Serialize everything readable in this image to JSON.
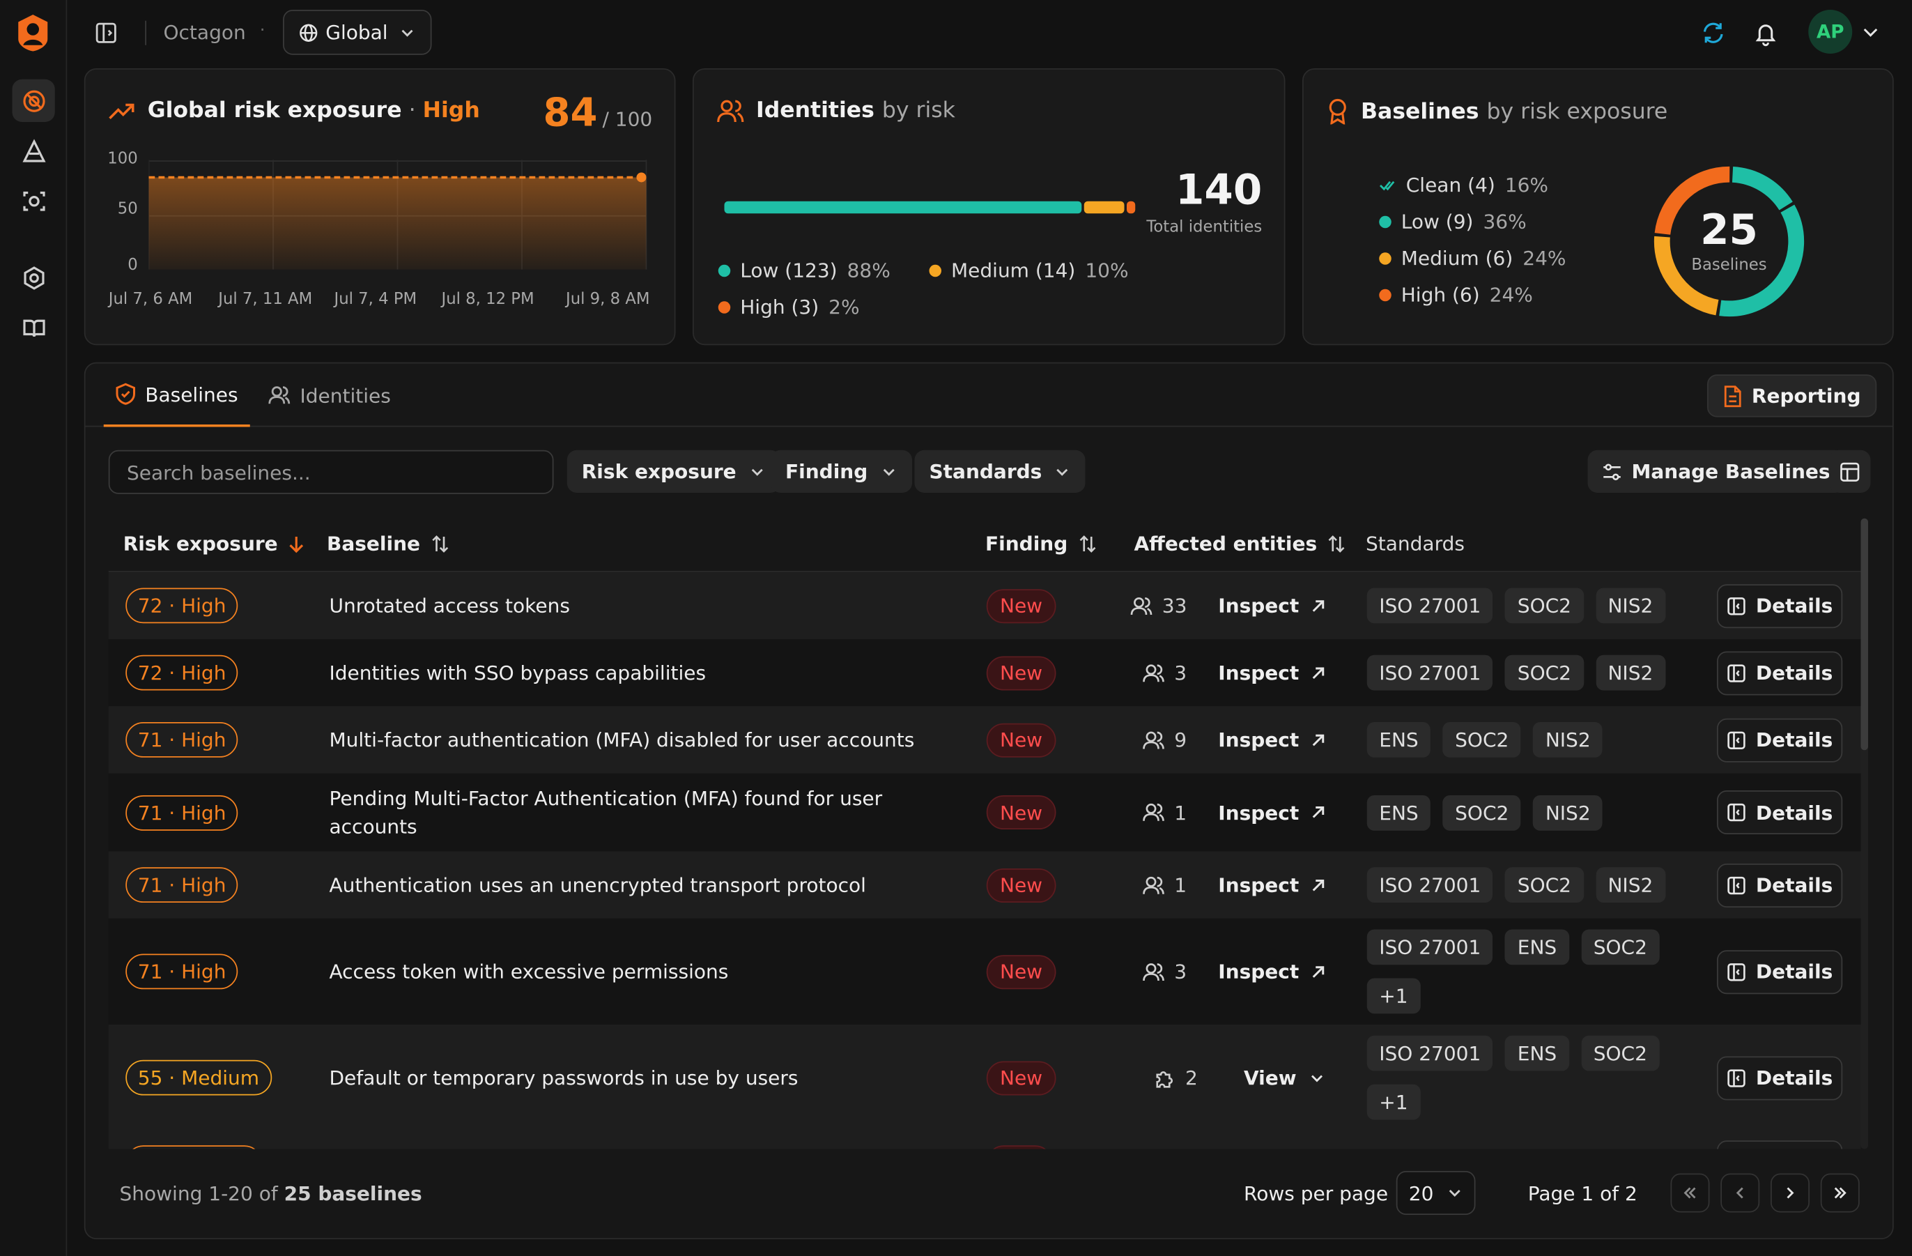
{
  "topbar": {
    "org_name": "Octagon",
    "separator": "·",
    "scope_label": "Global",
    "avatar_initials": "AP"
  },
  "sidebar": {
    "items": [
      {
        "icon": "target-off-icon",
        "active": true
      },
      {
        "icon": "triangle-icon",
        "active": false
      },
      {
        "icon": "scan-face-icon",
        "active": false
      },
      {
        "icon": "settings-gear-icon",
        "active": false
      },
      {
        "icon": "book-open-icon",
        "active": false
      }
    ]
  },
  "risk_card": {
    "title": "Global risk exposure",
    "dot": " · ",
    "level": "High",
    "score": "84",
    "score_max": "/ 100",
    "chart_data": {
      "type": "area",
      "x": [
        "Jul 7, 6 AM",
        "Jul 7, 11 AM",
        "Jul 7, 4 PM",
        "Jul 8, 12 PM",
        "Jul 9, 8 AM"
      ],
      "values": [
        84,
        84,
        84,
        84,
        84
      ],
      "yticks": [
        "100",
        "50",
        "0"
      ],
      "ylim": [
        0,
        100
      ],
      "color": "#f58220"
    }
  },
  "identities_card": {
    "title": "Identities",
    "subtitle": "by risk",
    "total": "140",
    "total_label": "Total identities",
    "segments": [
      {
        "label": "Low (123)",
        "pct": "88%",
        "fraction": 0.88,
        "color": "#1fbfa6"
      },
      {
        "label": "Medium (14)",
        "pct": "10%",
        "fraction": 0.1,
        "color": "#f5a623"
      },
      {
        "label": "High (3)",
        "pct": "2%",
        "fraction": 0.02,
        "color": "#f26b1d"
      }
    ]
  },
  "baselines_card": {
    "title": "Baselines",
    "subtitle": "by risk exposure",
    "total": "25",
    "total_label": "Baselines",
    "segments": [
      {
        "label": "Clean (4)",
        "pct": "16%",
        "fraction": 0.16,
        "color": "#1fbfa6"
      },
      {
        "label": "Low (9)",
        "pct": "36%",
        "fraction": 0.36,
        "color": "#1fbfa6"
      },
      {
        "label": "Medium (6)",
        "pct": "24%",
        "fraction": 0.24,
        "color": "#f5a623"
      },
      {
        "label": "High (6)",
        "pct": "24%",
        "fraction": 0.24,
        "color": "#f26b1d"
      }
    ]
  },
  "tabs": [
    {
      "label": "Baselines",
      "active": true
    },
    {
      "label": "Identities",
      "active": false
    }
  ],
  "reporting_label": "Reporting",
  "toolbar": {
    "search_placeholder": "Search baselines...",
    "filters": [
      "Risk exposure",
      "Finding",
      "Standards"
    ],
    "manage_label": "Manage Baselines"
  },
  "table": {
    "headers": {
      "risk": "Risk exposure",
      "baseline": "Baseline",
      "finding": "Finding",
      "entities": "Affected entities",
      "standards": "Standards"
    },
    "rows": [
      {
        "risk": "72 · High",
        "level": "high",
        "baseline": "Unrotated access tokens",
        "finding": "New",
        "entity_icon": "users-icon",
        "entities": "33",
        "action": "Inspect",
        "standards": [
          "ISO 27001",
          "SOC2",
          "NIS2"
        ],
        "details": "Details"
      },
      {
        "risk": "72 · High",
        "level": "high",
        "baseline": "Identities with SSO bypass capabilities",
        "finding": "New",
        "entity_icon": "users-icon",
        "entities": "3",
        "action": "Inspect",
        "standards": [
          "ISO 27001",
          "SOC2",
          "NIS2"
        ],
        "details": "Details"
      },
      {
        "risk": "71 · High",
        "level": "high",
        "baseline": "Multi-factor authentication (MFA) disabled for user accounts",
        "finding": "New",
        "entity_icon": "users-icon",
        "entities": "9",
        "action": "Inspect",
        "standards": [
          "ENS",
          "SOC2",
          "NIS2"
        ],
        "details": "Details"
      },
      {
        "risk": "71 · High",
        "level": "high",
        "baseline": "Pending Multi-Factor Authentication (MFA) found for user accounts",
        "finding": "New",
        "entity_icon": "users-icon",
        "entities": "1",
        "action": "Inspect",
        "standards": [
          "ENS",
          "SOC2",
          "NIS2"
        ],
        "details": "Details"
      },
      {
        "risk": "71 · High",
        "level": "high",
        "baseline": "Authentication uses an unencrypted transport protocol",
        "finding": "New",
        "entity_icon": "users-icon",
        "entities": "1",
        "action": "Inspect",
        "standards": [
          "ISO 27001",
          "SOC2",
          "NIS2"
        ],
        "details": "Details"
      },
      {
        "risk": "71 · High",
        "level": "high",
        "baseline": "Access token with excessive permissions",
        "finding": "New",
        "entity_icon": "users-icon",
        "entities": "3",
        "action": "Inspect",
        "standards": [
          "ISO 27001",
          "ENS",
          "SOC2",
          "+1"
        ],
        "details": "Details"
      },
      {
        "risk": "55 · Medium",
        "level": "medium",
        "baseline": "Default or temporary passwords in use by users",
        "finding": "New",
        "entity_icon": "puzzle-icon",
        "entities": "2",
        "action": "View",
        "standards": [
          "ISO 27001",
          "ENS",
          "SOC2",
          "+1"
        ],
        "details": "Details"
      }
    ]
  },
  "footer": {
    "showing_prefix": "Showing 1-20 of",
    "showing_bold": "25 baselines",
    "rows_per_page_label": "Rows per page",
    "rows_per_page": "20",
    "page_info": "Page 1 of 2"
  }
}
